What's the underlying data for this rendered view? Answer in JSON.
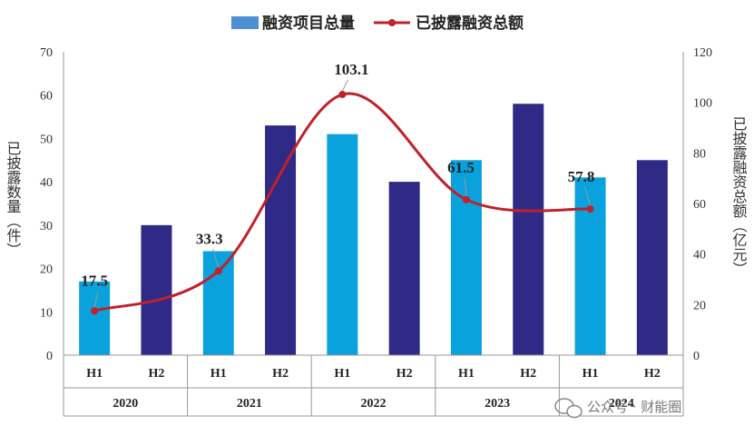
{
  "colors": {
    "h1": "#0aa2dc",
    "h2": "#2f2a86",
    "line": "#c0212b",
    "axis": "#999999",
    "legend_bar": "#4d8fd0"
  },
  "legend": {
    "bars": "融资项目总量",
    "line": "已披露融资总额"
  },
  "watermark": "公众号 · 财能圈",
  "chart_data": {
    "type": "bar",
    "categories": [
      "H1",
      "H2",
      "H1",
      "H2",
      "H1",
      "H2",
      "H1",
      "H2",
      "H1",
      "H2"
    ],
    "years": [
      "2020",
      "2021",
      "2022",
      "2023",
      "2024"
    ],
    "series": [
      {
        "name": "融资项目总量",
        "type": "bar",
        "axis": "left",
        "values": [
          17,
          30,
          24,
          53,
          51,
          40,
          45,
          58,
          41,
          45
        ]
      },
      {
        "name": "已披露融资总额",
        "type": "line",
        "axis": "right",
        "values": [
          17.5,
          null,
          33.3,
          null,
          103.1,
          null,
          61.5,
          null,
          57.8,
          null
        ]
      }
    ],
    "data_labels": [
      "17.5",
      "33.3",
      "103.1",
      "61.5",
      "57.8"
    ],
    "ylabel": "已披露数量（件）",
    "y2label": "已披露融资总额（亿元）",
    "ylim": [
      0,
      70
    ],
    "y2lim": [
      0,
      120
    ],
    "yticks": [
      "0",
      "10",
      "20",
      "30",
      "40",
      "50",
      "60",
      "70"
    ],
    "y2ticks": [
      "0",
      "20",
      "40",
      "60",
      "80",
      "100",
      "120"
    ],
    "grid": false,
    "legend_position": "top-center"
  }
}
